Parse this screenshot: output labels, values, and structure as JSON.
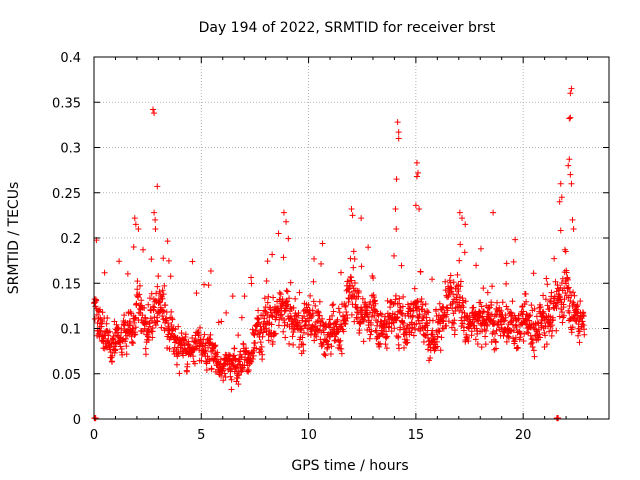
{
  "chart_data": {
    "type": "scatter",
    "title": "Day 194 of 2022, SRMTID for receiver brst",
    "xlabel": "GPS time / hours",
    "ylabel": "SRMTID / TECUs",
    "xlim": [
      0,
      24
    ],
    "ylim": [
      0,
      0.4
    ],
    "x_ticks": [
      0,
      5,
      10,
      15,
      20
    ],
    "x_tick_labels": [
      "0",
      "5",
      "10",
      "15",
      "20"
    ],
    "y_ticks": [
      0,
      0.05,
      0.1,
      0.15,
      0.2,
      0.25,
      0.3,
      0.35,
      0.4
    ],
    "y_tick_labels": [
      "0",
      "0.05",
      "0.1",
      "0.15",
      "0.2",
      "0.25",
      "0.3",
      "0.35",
      "0.4"
    ],
    "grid": true,
    "marker": "+",
    "series_color": "#ff0000",
    "zero_markers_x": [
      0.05,
      21.6
    ],
    "outliers": [
      [
        2.75,
        0.342
      ],
      [
        2.8,
        0.338
      ],
      [
        2.95,
        0.257
      ],
      [
        2.8,
        0.228
      ],
      [
        2.85,
        0.22
      ],
      [
        1.9,
        0.222
      ],
      [
        1.95,
        0.215
      ],
      [
        1.85,
        0.19
      ],
      [
        8.85,
        0.228
      ],
      [
        8.95,
        0.218
      ],
      [
        8.6,
        0.205
      ],
      [
        12.0,
        0.232
      ],
      [
        12.05,
        0.225
      ],
      [
        12.45,
        0.222
      ],
      [
        14.1,
        0.265
      ],
      [
        14.15,
        0.328
      ],
      [
        14.2,
        0.317
      ],
      [
        14.2,
        0.31
      ],
      [
        14.05,
        0.232
      ],
      [
        15.05,
        0.283
      ],
      [
        15.1,
        0.272
      ],
      [
        15.05,
        0.268
      ],
      [
        15.0,
        0.236
      ],
      [
        15.15,
        0.232
      ],
      [
        17.05,
        0.228
      ],
      [
        17.15,
        0.222
      ],
      [
        17.3,
        0.215
      ],
      [
        18.6,
        0.228
      ],
      [
        21.75,
        0.26
      ],
      [
        21.8,
        0.245
      ],
      [
        21.7,
        0.24
      ],
      [
        22.15,
        0.287
      ],
      [
        22.1,
        0.28
      ],
      [
        22.2,
        0.27
      ],
      [
        22.25,
        0.26
      ],
      [
        22.15,
        0.332
      ],
      [
        22.2,
        0.333
      ],
      [
        22.2,
        0.36
      ],
      [
        22.25,
        0.365
      ],
      [
        22.3,
        0.22
      ],
      [
        22.35,
        0.21
      ]
    ],
    "profile": [
      [
        0.0,
        0.12,
        0.025
      ],
      [
        0.5,
        0.095,
        0.02
      ],
      [
        1.0,
        0.09,
        0.02
      ],
      [
        1.5,
        0.095,
        0.02
      ],
      [
        2.0,
        0.13,
        0.025
      ],
      [
        2.5,
        0.105,
        0.025
      ],
      [
        3.0,
        0.13,
        0.03
      ],
      [
        3.5,
        0.095,
        0.02
      ],
      [
        4.0,
        0.08,
        0.018
      ],
      [
        4.5,
        0.078,
        0.018
      ],
      [
        5.0,
        0.085,
        0.02
      ],
      [
        5.5,
        0.07,
        0.018
      ],
      [
        6.0,
        0.065,
        0.018
      ],
      [
        6.5,
        0.065,
        0.018
      ],
      [
        7.0,
        0.07,
        0.02
      ],
      [
        7.5,
        0.075,
        0.02
      ],
      [
        8.0,
        0.105,
        0.03
      ],
      [
        8.5,
        0.12,
        0.03
      ],
      [
        9.0,
        0.12,
        0.03
      ],
      [
        9.5,
        0.105,
        0.025
      ],
      [
        10.0,
        0.11,
        0.03
      ],
      [
        10.5,
        0.11,
        0.025
      ],
      [
        11.0,
        0.1,
        0.025
      ],
      [
        11.5,
        0.1,
        0.025
      ],
      [
        12.0,
        0.14,
        0.03
      ],
      [
        12.5,
        0.11,
        0.025
      ],
      [
        13.0,
        0.12,
        0.025
      ],
      [
        13.5,
        0.105,
        0.025
      ],
      [
        14.0,
        0.12,
        0.035
      ],
      [
        14.5,
        0.105,
        0.025
      ],
      [
        15.0,
        0.13,
        0.03
      ],
      [
        15.5,
        0.105,
        0.025
      ],
      [
        16.0,
        0.1,
        0.025
      ],
      [
        16.5,
        0.115,
        0.03
      ],
      [
        17.0,
        0.13,
        0.03
      ],
      [
        17.5,
        0.105,
        0.025
      ],
      [
        18.0,
        0.11,
        0.025
      ],
      [
        18.5,
        0.115,
        0.03
      ],
      [
        19.0,
        0.105,
        0.025
      ],
      [
        19.5,
        0.11,
        0.025
      ],
      [
        20.0,
        0.115,
        0.025
      ],
      [
        20.5,
        0.1,
        0.025
      ],
      [
        21.0,
        0.1,
        0.025
      ],
      [
        21.5,
        0.125,
        0.03
      ],
      [
        22.0,
        0.145,
        0.03
      ],
      [
        22.5,
        0.12,
        0.03
      ],
      [
        22.85,
        0.105,
        0.02
      ]
    ],
    "n_points": 1900,
    "x_end": 22.85
  }
}
